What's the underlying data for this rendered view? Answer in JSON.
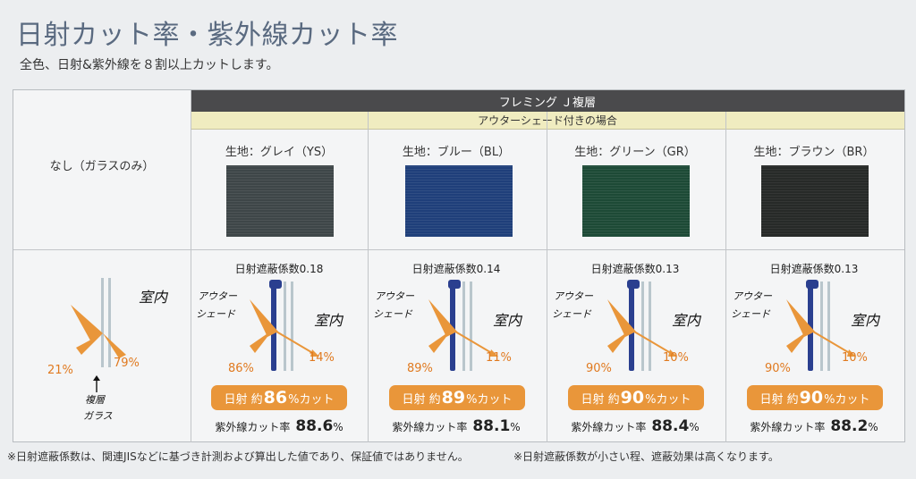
{
  "header": {
    "title": "日射カット率・紫外線カット率",
    "subtitle": "全色、日射&紫外線を８割以上カットします。"
  },
  "table": {
    "product_header": "フレミング Ｊ複層",
    "condition_header": "アウターシェード付きの場合",
    "baseline": {
      "label": "なし（ガラスのみ）",
      "reflect_pct": "21%",
      "transmit_pct": "79%",
      "room_note": "室内",
      "glass_note_1": "複層",
      "glass_note_2": "ガラス"
    },
    "columns": [
      {
        "fabric": "生地：グレイ（YS）",
        "swatch_color": "#3e4648",
        "coefficient": "日射遮蔽係数0.18",
        "reflect_pct": "86%",
        "transmit_pct": "14%",
        "cut_prefix": "日射 約",
        "cut_value": "86",
        "cut_suffix": "%カット",
        "uv_label": "紫外線カット率",
        "uv_value": "88.6",
        "uv_unit": "%",
        "shade_note_1": "アウター",
        "shade_note_2": "シェード",
        "room_note": "室内"
      },
      {
        "fabric": "生地：ブルー（BL）",
        "swatch_color": "#1f3f7a",
        "coefficient": "日射遮蔽係数0.14",
        "reflect_pct": "89%",
        "transmit_pct": "11%",
        "cut_prefix": "日射 約",
        "cut_value": "89",
        "cut_suffix": "%カット",
        "uv_label": "紫外線カット率",
        "uv_value": "88.1",
        "uv_unit": "%",
        "shade_note_1": "アウター",
        "shade_note_2": "シェード",
        "room_note": "室内"
      },
      {
        "fabric": "生地：グリーン（GR）",
        "swatch_color": "#1d4a36",
        "coefficient": "日射遮蔽係数0.13",
        "reflect_pct": "90%",
        "transmit_pct": "10%",
        "cut_prefix": "日射 約",
        "cut_value": "90",
        "cut_suffix": "%カット",
        "uv_label": "紫外線カット率",
        "uv_value": "88.4",
        "uv_unit": "%",
        "shade_note_1": "アウター",
        "shade_note_2": "シェード",
        "room_note": "室内"
      },
      {
        "fabric": "生地：ブラウン（BR）",
        "swatch_color": "#272a28",
        "coefficient": "日射遮蔽係数0.13",
        "reflect_pct": "90%",
        "transmit_pct": "10%",
        "cut_prefix": "日射 約",
        "cut_value": "90",
        "cut_suffix": "%カット",
        "uv_label": "紫外線カット率",
        "uv_value": "88.2",
        "uv_unit": "%",
        "shade_note_1": "アウター",
        "shade_note_2": "シェード",
        "room_note": "室内"
      }
    ]
  },
  "footnotes": {
    "left": "※日射遮蔽係数は、関連JISなどに基づき計測および算出した値であり、保証値ではありません。",
    "right": "※日射遮蔽係数が小さい程、遮蔽効果は高くなります。"
  },
  "colors": {
    "accent_orange": "#e9963a",
    "shade_blue": "#2a3f8f",
    "glass": "#b9c6cc"
  }
}
